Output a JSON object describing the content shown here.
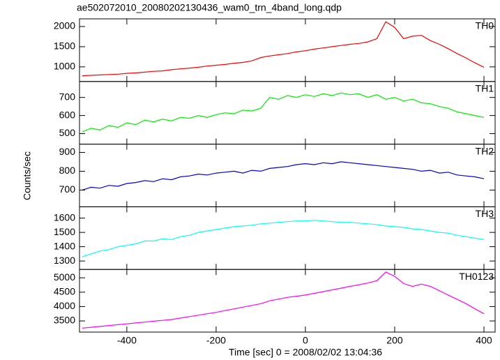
{
  "chart_data": {
    "type": "line",
    "title": "ae502072010_20080202130436_wam0_trn_4band_long.qdp",
    "xlabel": "Time [sec] 0 = 2008/02/02 13:04:36",
    "ylabel": "Counts/sec",
    "xlim": [
      -506,
      425
    ],
    "xticks": [
      -400,
      -200,
      0,
      200,
      400
    ],
    "x": [
      -500,
      -480,
      -460,
      -440,
      -420,
      -400,
      -380,
      -360,
      -340,
      -320,
      -300,
      -280,
      -260,
      -240,
      -220,
      -200,
      -180,
      -160,
      -140,
      -120,
      -100,
      -80,
      -60,
      -40,
      -20,
      0,
      20,
      40,
      60,
      80,
      100,
      120,
      140,
      160,
      180,
      200,
      220,
      240,
      260,
      280,
      300,
      320,
      340,
      360,
      380,
      400
    ],
    "panels": [
      {
        "label": "TH0",
        "color": "#ff0000",
        "ylim": [
          638,
          2190
        ],
        "yticks": [
          1000,
          1500,
          2000
        ],
        "values": [
          780,
          790,
          800,
          810,
          820,
          840,
          850,
          870,
          890,
          900,
          930,
          950,
          970,
          990,
          1020,
          1040,
          1060,
          1090,
          1110,
          1150,
          1230,
          1270,
          1300,
          1330,
          1370,
          1400,
          1440,
          1470,
          1500,
          1530,
          1560,
          1580,
          1620,
          1700,
          2120,
          1980,
          1700,
          1760,
          1780,
          1650,
          1560,
          1450,
          1330,
          1220,
          1100,
          990
        ]
      },
      {
        "label": "TH1",
        "color": "#00ee00",
        "ylim": [
          442,
          788
        ],
        "yticks": [
          500,
          600,
          700
        ],
        "values": [
          510,
          530,
          520,
          545,
          535,
          560,
          550,
          575,
          565,
          580,
          570,
          590,
          585,
          600,
          590,
          605,
          615,
          610,
          630,
          625,
          640,
          700,
          690,
          710,
          700,
          715,
          705,
          720,
          710,
          725,
          715,
          720,
          700,
          715,
          690,
          700,
          680,
          690,
          670,
          665,
          650,
          640,
          620,
          610,
          600,
          590
        ]
      },
      {
        "label": "TH2",
        "color": "#0000dd",
        "ylim": [
          611,
          944
        ],
        "yticks": [
          700,
          800,
          900
        ],
        "values": [
          700,
          715,
          710,
          725,
          720,
          735,
          740,
          750,
          745,
          760,
          755,
          770,
          775,
          785,
          780,
          790,
          795,
          800,
          790,
          805,
          800,
          815,
          820,
          825,
          835,
          840,
          835,
          845,
          840,
          850,
          845,
          840,
          835,
          830,
          825,
          820,
          815,
          810,
          800,
          805,
          790,
          795,
          780,
          775,
          770,
          760
        ]
      },
      {
        "label": "TH3",
        "color": "#00ffff",
        "ylim": [
          1241,
          1679
        ],
        "yticks": [
          1300,
          1400,
          1500,
          1600
        ],
        "values": [
          1330,
          1350,
          1370,
          1380,
          1400,
          1410,
          1420,
          1440,
          1440,
          1455,
          1450,
          1470,
          1480,
          1500,
          1510,
          1520,
          1530,
          1540,
          1545,
          1550,
          1560,
          1565,
          1570,
          1575,
          1580,
          1580,
          1585,
          1580,
          1575,
          1570,
          1570,
          1565,
          1560,
          1555,
          1545,
          1540,
          1535,
          1525,
          1520,
          1510,
          1500,
          1495,
          1480,
          1470,
          1460,
          1450
        ]
      },
      {
        "label": "TH0123",
        "color": "#ff00ff",
        "ylim": [
          3113,
          5290
        ],
        "yticks": [
          3500,
          4000,
          4500,
          5000
        ],
        "values": [
          3250,
          3280,
          3310,
          3340,
          3370,
          3400,
          3430,
          3460,
          3490,
          3520,
          3550,
          3600,
          3650,
          3700,
          3750,
          3800,
          3860,
          3920,
          3980,
          4040,
          4100,
          4200,
          4260,
          4320,
          4360,
          4400,
          4460,
          4520,
          4580,
          4640,
          4700,
          4760,
          4820,
          4900,
          5200,
          5050,
          4800,
          4700,
          4780,
          4700,
          4550,
          4400,
          4250,
          4100,
          3920,
          3750
        ]
      }
    ]
  }
}
